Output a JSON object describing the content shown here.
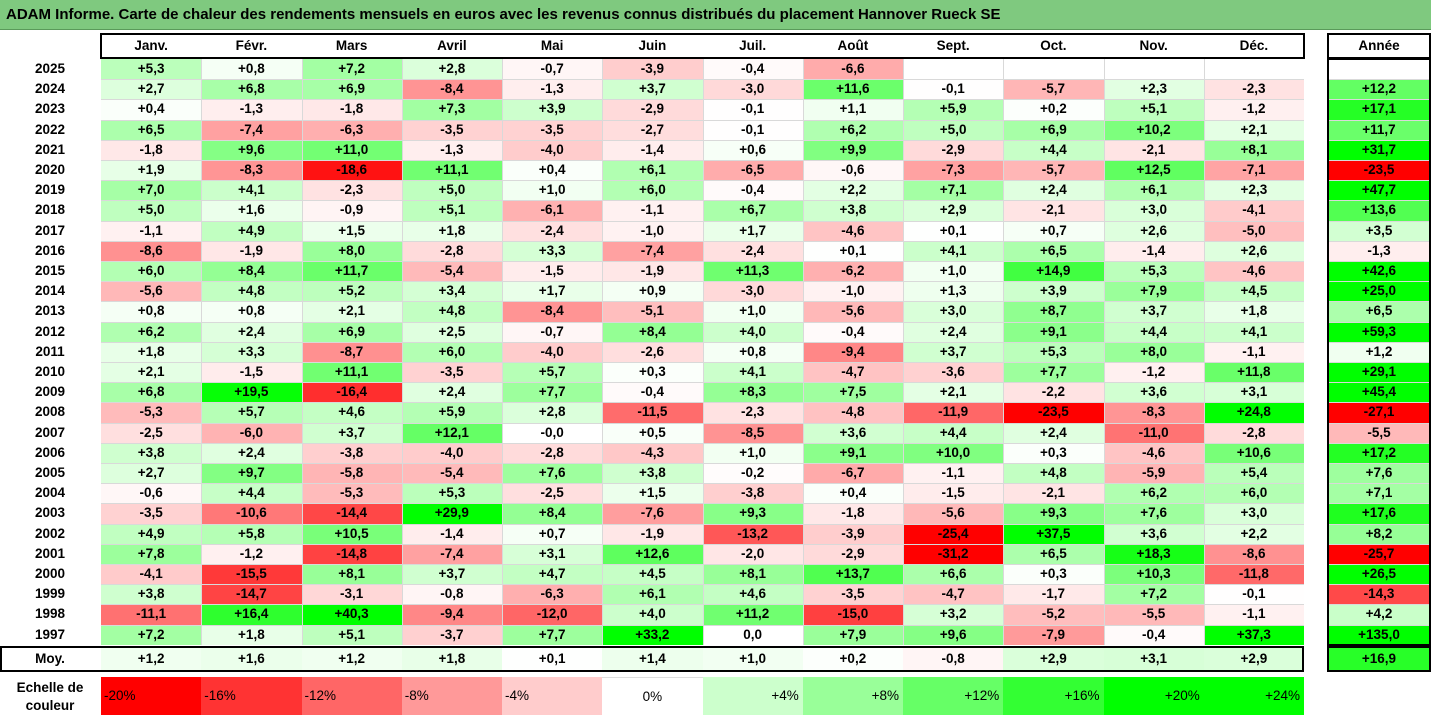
{
  "chart_data": {
    "type": "heatmap",
    "title": "ADAM Informe. Carte de chaleur des rendements mensuels en euros avec les revenus connus distribués du placement Hannover Rueck SE",
    "columns": [
      "Janv.",
      "Févr.",
      "Mars",
      "Avril",
      "Mai",
      "Juin",
      "Juil.",
      "Août",
      "Sept.",
      "Oct.",
      "Nov.",
      "Déc."
    ],
    "year_column_label": "Année",
    "average_row_label": "Moy.",
    "rows": [
      {
        "year": "2025",
        "values": [
          "+5,3",
          "+0,8",
          "+7,2",
          "+2,8",
          "-0,7",
          "-3,9",
          "-0,4",
          "-6,6",
          "",
          "",
          "",
          ""
        ],
        "total": ""
      },
      {
        "year": "2024",
        "values": [
          "+2,7",
          "+6,8",
          "+6,9",
          "-8,4",
          "-1,3",
          "+3,7",
          "-3,0",
          "+11,6",
          "-0,1",
          "-5,7",
          "+2,3",
          "-2,3"
        ],
        "total": "+12,2"
      },
      {
        "year": "2023",
        "values": [
          "+0,4",
          "-1,3",
          "-1,8",
          "+7,3",
          "+3,9",
          "-2,9",
          "-0,1",
          "+1,1",
          "+5,9",
          "+0,2",
          "+5,1",
          "-1,2"
        ],
        "total": "+17,1"
      },
      {
        "year": "2022",
        "values": [
          "+6,5",
          "-7,4",
          "-6,3",
          "-3,5",
          "-3,5",
          "-2,7",
          "-0,1",
          "+6,2",
          "+5,0",
          "+6,9",
          "+10,2",
          "+2,1"
        ],
        "total": "+11,7"
      },
      {
        "year": "2021",
        "values": [
          "-1,8",
          "+9,6",
          "+11,0",
          "-1,3",
          "-4,0",
          "-1,4",
          "+0,6",
          "+9,9",
          "-2,9",
          "+4,4",
          "-2,1",
          "+8,1"
        ],
        "total": "+31,7"
      },
      {
        "year": "2020",
        "values": [
          "+1,9",
          "-8,3",
          "-18,6",
          "+11,1",
          "+0,4",
          "+6,1",
          "-6,5",
          "-0,6",
          "-7,3",
          "-5,7",
          "+12,5",
          "-7,1"
        ],
        "total": "-23,5"
      },
      {
        "year": "2019",
        "values": [
          "+7,0",
          "+4,1",
          "-2,3",
          "+5,0",
          "+1,0",
          "+6,0",
          "-0,4",
          "+2,2",
          "+7,1",
          "+2,4",
          "+6,1",
          "+2,3"
        ],
        "total": "+47,7"
      },
      {
        "year": "2018",
        "values": [
          "+5,0",
          "+1,6",
          "-0,9",
          "+5,1",
          "-6,1",
          "-1,1",
          "+6,7",
          "+3,8",
          "+2,9",
          "-2,1",
          "+3,0",
          "-4,1"
        ],
        "total": "+13,6"
      },
      {
        "year": "2017",
        "values": [
          "-1,1",
          "+4,9",
          "+1,5",
          "+1,8",
          "-2,4",
          "-1,0",
          "+1,7",
          "-4,6",
          "+0,1",
          "+0,7",
          "+2,6",
          "-5,0"
        ],
        "total": "+3,5"
      },
      {
        "year": "2016",
        "values": [
          "-8,6",
          "-1,9",
          "+8,0",
          "-2,8",
          "+3,3",
          "-7,4",
          "-2,4",
          "+0,1",
          "+4,1",
          "+6,5",
          "-1,4",
          "+2,6"
        ],
        "total": "-1,3"
      },
      {
        "year": "2015",
        "values": [
          "+6,0",
          "+8,4",
          "+11,7",
          "-5,4",
          "-1,5",
          "-1,9",
          "+11,3",
          "-6,2",
          "+1,0",
          "+14,9",
          "+5,3",
          "-4,6"
        ],
        "total": "+42,6"
      },
      {
        "year": "2014",
        "values": [
          "-5,6",
          "+4,8",
          "+5,2",
          "+3,4",
          "+1,7",
          "+0,9",
          "-3,0",
          "-1,0",
          "+1,3",
          "+3,9",
          "+7,9",
          "+4,5"
        ],
        "total": "+25,0"
      },
      {
        "year": "2013",
        "values": [
          "+0,8",
          "+0,8",
          "+2,1",
          "+4,8",
          "-8,4",
          "-5,1",
          "+1,0",
          "-5,6",
          "+3,0",
          "+8,7",
          "+3,7",
          "+1,8"
        ],
        "total": "+6,5"
      },
      {
        "year": "2012",
        "values": [
          "+6,2",
          "+2,4",
          "+6,9",
          "+2,5",
          "-0,7",
          "+8,4",
          "+4,0",
          "-0,4",
          "+2,4",
          "+9,1",
          "+4,4",
          "+4,1"
        ],
        "total": "+59,3"
      },
      {
        "year": "2011",
        "values": [
          "+1,8",
          "+3,3",
          "-8,7",
          "+6,0",
          "-4,0",
          "-2,6",
          "+0,8",
          "-9,4",
          "+3,7",
          "+5,3",
          "+8,0",
          "-1,1"
        ],
        "total": "+1,2"
      },
      {
        "year": "2010",
        "values": [
          "+2,1",
          "-1,5",
          "+11,1",
          "-3,5",
          "+5,7",
          "+0,3",
          "+4,1",
          "-4,7",
          "-3,6",
          "+7,7",
          "-1,2",
          "+11,8"
        ],
        "total": "+29,1"
      },
      {
        "year": "2009",
        "values": [
          "+6,8",
          "+19,5",
          "-16,4",
          "+2,4",
          "+7,7",
          "-0,4",
          "+8,3",
          "+7,5",
          "+2,1",
          "-2,2",
          "+3,6",
          "+3,1"
        ],
        "total": "+45,4"
      },
      {
        "year": "2008",
        "values": [
          "-5,3",
          "+5,7",
          "+4,6",
          "+5,9",
          "+2,8",
          "-11,5",
          "-2,3",
          "-4,8",
          "-11,9",
          "-23,5",
          "-8,3",
          "+24,8"
        ],
        "total": "-27,1"
      },
      {
        "year": "2007",
        "values": [
          "-2,5",
          "-6,0",
          "+3,7",
          "+12,1",
          "-0,0",
          "+0,5",
          "-8,5",
          "+3,6",
          "+4,4",
          "+2,4",
          "-11,0",
          "-2,8"
        ],
        "total": "-5,5"
      },
      {
        "year": "2006",
        "values": [
          "+3,8",
          "+2,4",
          "-3,8",
          "-4,0",
          "-2,8",
          "-4,3",
          "+1,0",
          "+9,1",
          "+10,0",
          "+0,3",
          "-4,6",
          "+10,6"
        ],
        "total": "+17,2"
      },
      {
        "year": "2005",
        "values": [
          "+2,7",
          "+9,7",
          "-5,8",
          "-5,4",
          "+7,6",
          "+3,8",
          "-0,2",
          "-6,7",
          "-1,1",
          "+4,8",
          "-5,9",
          "+5,4"
        ],
        "total": "+7,6"
      },
      {
        "year": "2004",
        "values": [
          "-0,6",
          "+4,4",
          "-5,3",
          "+5,3",
          "-2,5",
          "+1,5",
          "-3,8",
          "+0,4",
          "-1,5",
          "-2,1",
          "+6,2",
          "+6,0"
        ],
        "total": "+7,1"
      },
      {
        "year": "2003",
        "values": [
          "-3,5",
          "-10,6",
          "-14,4",
          "+29,9",
          "+8,4",
          "-7,6",
          "+9,3",
          "-1,8",
          "-5,6",
          "+9,3",
          "+7,6",
          "+3,0"
        ],
        "total": "+17,6"
      },
      {
        "year": "2002",
        "values": [
          "+4,9",
          "+5,8",
          "+10,5",
          "-1,4",
          "+0,7",
          "-1,9",
          "-13,2",
          "-3,9",
          "-25,4",
          "+37,5",
          "+3,6",
          "+2,2"
        ],
        "total": "+8,2"
      },
      {
        "year": "2001",
        "values": [
          "+7,8",
          "-1,2",
          "-14,8",
          "-7,4",
          "+3,1",
          "+12,6",
          "-2,0",
          "-2,9",
          "-31,2",
          "+6,5",
          "+18,3",
          "-8,6"
        ],
        "total": "-25,7"
      },
      {
        "year": "2000",
        "values": [
          "-4,1",
          "-15,5",
          "+8,1",
          "+3,7",
          "+4,7",
          "+4,5",
          "+8,1",
          "+13,7",
          "+6,6",
          "+0,3",
          "+10,3",
          "-11,8"
        ],
        "total": "+26,5"
      },
      {
        "year": "1999",
        "values": [
          "+3,8",
          "-14,7",
          "-3,1",
          "-0,8",
          "-6,3",
          "+6,1",
          "+4,6",
          "-3,5",
          "-4,7",
          "-1,7",
          "+7,2",
          "-0,1"
        ],
        "total": "-14,3"
      },
      {
        "year": "1998",
        "values": [
          "-11,1",
          "+16,4",
          "+40,3",
          "-9,4",
          "-12,0",
          "+4,0",
          "+11,2",
          "-15,0",
          "+3,2",
          "-5,2",
          "-5,5",
          "-1,1"
        ],
        "total": "+4,2"
      },
      {
        "year": "1997",
        "values": [
          "+7,2",
          "+1,8",
          "+5,1",
          "-3,7",
          "+7,7",
          "+33,2",
          "0,0",
          "+7,9",
          "+9,6",
          "-7,9",
          "-0,4",
          "+37,3"
        ],
        "total": "+135,0"
      }
    ],
    "average": {
      "values": [
        "+1,2",
        "+1,6",
        "+1,2",
        "+1,8",
        "+0,1",
        "+1,4",
        "+1,0",
        "+0,2",
        "-0,8",
        "+2,9",
        "+3,1",
        "+2,9"
      ],
      "total": "+16,9"
    },
    "color_scale": {
      "label": "Echelle de couleur",
      "stops": [
        {
          "label": "-20%",
          "value": -20,
          "color": "#ff0000"
        },
        {
          "label": "-16%",
          "value": -16,
          "color": "#ff3333"
        },
        {
          "label": "-12%",
          "value": -12,
          "color": "#ff6666"
        },
        {
          "label": "-8%",
          "value": -8,
          "color": "#ff9999"
        },
        {
          "label": "-4%",
          "value": -4,
          "color": "#ffcccc"
        },
        {
          "label": "0%",
          "value": 0,
          "color": "#ffffff"
        },
        {
          "label": "+4%",
          "value": 4,
          "color": "#ccffcc"
        },
        {
          "label": "+8%",
          "value": 8,
          "color": "#99ff99"
        },
        {
          "label": "+12%",
          "value": 12,
          "color": "#66ff66"
        },
        {
          "label": "+16%",
          "value": 16,
          "color": "#33ff33"
        },
        {
          "label": "+20%",
          "value": 20,
          "color": "#00ff00"
        },
        {
          "label": "+24%",
          "value": 24,
          "color": "#00ff00"
        }
      ]
    }
  }
}
